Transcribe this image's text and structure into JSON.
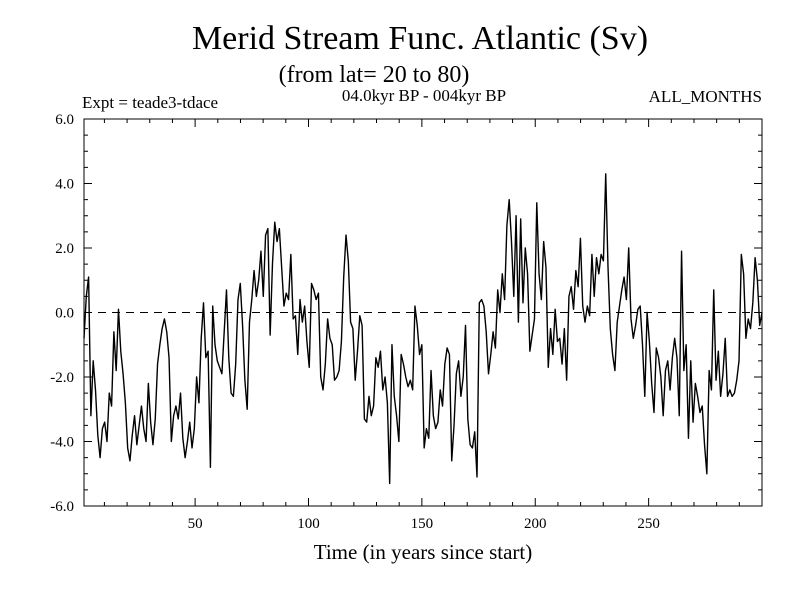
{
  "chart_data": {
    "type": "line",
    "title": "Merid Stream Func. Atlantic (Sv)",
    "subtitle": "(from lat= 20 to 80)",
    "experiment": "Expt = teade3-tdace",
    "period": "04.0kyr BP - 004kyr BP",
    "months": "ALL_MONTHS",
    "xlabel": "Time (in years since start)",
    "ylabel": "",
    "xlim": [
      1,
      300
    ],
    "ylim": [
      -6.0,
      6.0
    ],
    "x_ticks": [
      50,
      100,
      150,
      200,
      250
    ],
    "x_tick_labels": [
      "50",
      "100",
      "150",
      "200",
      "250"
    ],
    "y_ticks": [
      -6.0,
      -4.0,
      -2.0,
      0.0,
      2.0,
      4.0,
      6.0
    ],
    "y_tick_labels": [
      "-6.0",
      "-4.0",
      "-2.0",
      "0.0",
      "2.0",
      "4.0",
      "6.0"
    ],
    "reference_line": 0.0,
    "series": [
      {
        "name": "Merid Stream Func. Atlantic",
        "x_start": 1,
        "x_step": 1,
        "values": [
          -0.8,
          0.5,
          1.1,
          -3.2,
          -1.5,
          -2.4,
          -3.8,
          -4.5,
          -3.6,
          -3.4,
          -4.0,
          -2.5,
          -2.9,
          -0.6,
          -1.8,
          0.1,
          -1.2,
          -1.9,
          -2.8,
          -4.2,
          -4.6,
          -3.8,
          -3.2,
          -4.1,
          -3.5,
          -2.9,
          -3.6,
          -4.0,
          -2.2,
          -3.4,
          -4.1,
          -3.3,
          -1.6,
          -1.0,
          -0.5,
          -0.2,
          -0.6,
          -1.4,
          -4.0,
          -3.2,
          -2.9,
          -3.3,
          -2.5,
          -3.9,
          -4.5,
          -4.0,
          -3.4,
          -4.2,
          -3.6,
          -2.0,
          -2.8,
          -0.8,
          0.3,
          -1.4,
          -1.2,
          -4.8,
          0.2,
          -1.0,
          -1.5,
          -1.7,
          -1.9,
          -0.6,
          0.7,
          -1.4,
          -2.5,
          -2.6,
          -1.6,
          0.4,
          0.9,
          -0.4,
          -2.1,
          -3.0,
          -0.3,
          0.4,
          1.3,
          0.5,
          1.0,
          1.9,
          0.5,
          2.4,
          2.6,
          -0.7,
          1.5,
          2.8,
          2.2,
          2.6,
          1.4,
          0.2,
          0.6,
          0.4,
          1.8,
          -0.2,
          -0.1,
          -1.3,
          0.4,
          -0.3,
          0.2,
          -0.9,
          -1.7,
          0.9,
          0.7,
          0.4,
          0.6,
          -2.0,
          -2.4,
          -1.6,
          -0.2,
          -0.8,
          -1.0,
          -2.1,
          -2.0,
          -1.8,
          -0.9,
          1.1,
          2.4,
          1.6,
          -0.3,
          -0.5,
          -2.1,
          -1.2,
          -0.1,
          -0.4,
          -3.3,
          -3.4,
          -2.6,
          -3.2,
          -2.9,
          -1.4,
          -1.7,
          -1.2,
          -2.4,
          -2.0,
          -2.8,
          -5.3,
          -1.0,
          -2.6,
          -3.2,
          -4.0,
          -1.3,
          -1.6,
          -2.0,
          -2.3,
          -2.1,
          -2.4,
          0.2,
          -0.4,
          -1.3,
          -1.0,
          -4.2,
          -3.6,
          -3.9,
          -1.8,
          -3.2,
          -3.6,
          -3.4,
          -2.4,
          -2.9,
          -1.6,
          -1.1,
          -1.3,
          -4.6,
          -3.5,
          -1.9,
          -1.5,
          -2.6,
          -2.0,
          -0.4,
          -3.3,
          -4.1,
          -4.2,
          -3.7,
          -5.1,
          0.3,
          0.4,
          0.2,
          -0.6,
          -1.9,
          -1.3,
          -0.6,
          -1.1,
          0.7,
          0.0,
          1.2,
          0.4,
          2.7,
          3.5,
          2.2,
          0.5,
          3.0,
          -0.3,
          2.9,
          0.3,
          2.0,
          1.2,
          -1.2,
          -0.7,
          -0.2,
          3.4,
          1.2,
          0.4,
          2.2,
          1.4,
          -1.7,
          -0.5,
          -1.3,
          0.1,
          -0.9,
          -0.8,
          -1.6,
          -0.5,
          -2.1,
          0.5,
          0.8,
          0.1,
          1.3,
          0.8,
          2.3,
          0.2,
          -0.3,
          0.2,
          -0.1,
          1.8,
          0.5,
          1.7,
          1.2,
          1.8,
          1.6,
          4.3,
          1.4,
          -0.5,
          -1.3,
          -1.8,
          -0.3,
          0.2,
          0.7,
          1.1,
          0.4,
          2.0,
          -0.2,
          -0.8,
          -0.4,
          0.1,
          0.2,
          -1.0,
          -2.6,
          0.0,
          -0.9,
          -2.2,
          -3.1,
          -1.1,
          -1.4,
          -2.0,
          -3.2,
          -1.8,
          -1.5,
          -2.4,
          -1.4,
          -0.8,
          -1.4,
          -3.2,
          1.9,
          -1.8,
          -1.0,
          -3.9,
          -1.5,
          -3.4,
          -2.2,
          -2.6,
          -3.1,
          -2.9,
          -4.1,
          -5.0,
          -1.8,
          -2.4,
          0.7,
          -2.1,
          -1.2,
          -2.6,
          -1.9,
          -0.8,
          -2.6,
          -2.4,
          -2.6,
          -2.5,
          -2.1,
          -1.5,
          1.8,
          1.2,
          -0.8,
          -0.2,
          -0.5,
          0.3,
          1.7,
          1.0,
          -0.4,
          0.0
        ]
      }
    ]
  }
}
